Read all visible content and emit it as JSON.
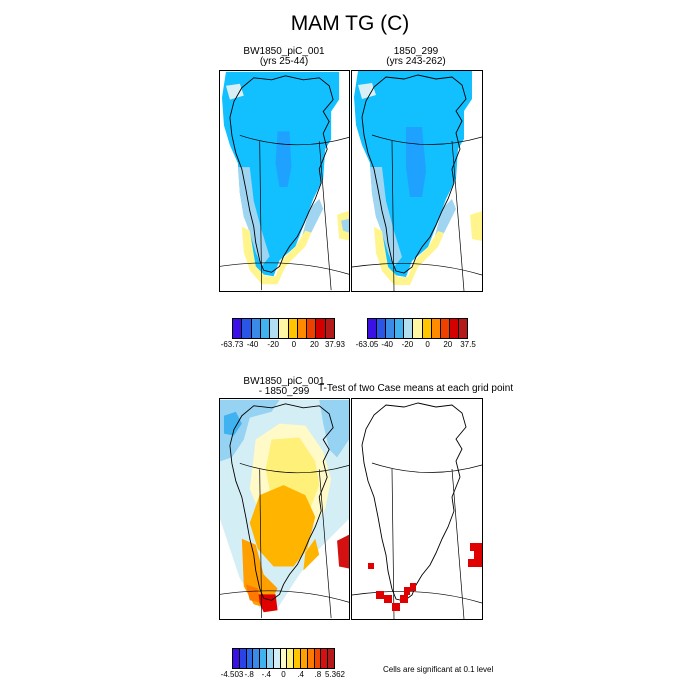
{
  "page": {
    "title": "MAM TG (C)"
  },
  "panels": [
    {
      "title_line1": "BW1850_piC_001",
      "title_line2": "(yrs 25-44)"
    },
    {
      "title_line1": "1850_299",
      "title_line2": "(yrs 243-262)"
    },
    {
      "title_line1": "BW1850_piC_001",
      "title_line2": "- 1850_299"
    },
    {
      "title_line1": "T-Test of two Case means at each grid point",
      "title_line2": ""
    }
  ],
  "colorbars": [
    {
      "colors": [
        "#3a10e6",
        "#2a55e6",
        "#3a8ae8",
        "#40b2f0",
        "#b2e0f2",
        "#fff7a4",
        "#ffc600",
        "#ff8a00",
        "#f04000",
        "#d40000",
        "#b41a1a"
      ],
      "labels": [
        "-63.73",
        "-40",
        "-20",
        "0",
        "20",
        "37.93"
      ]
    },
    {
      "colors": [
        "#3a10e6",
        "#2a55e6",
        "#3a8ae8",
        "#40b2f0",
        "#b2e0f2",
        "#fff7a4",
        "#ffc600",
        "#ff8a00",
        "#f04000",
        "#d40000",
        "#b41a1a"
      ],
      "labels": [
        "-63.05",
        "-40",
        "-20",
        "0",
        "20",
        "37.5"
      ]
    },
    {
      "colors": [
        "#3a10e6",
        "#2a42e6",
        "#2a6ae6",
        "#3a8ae8",
        "#40b2f0",
        "#96d2f2",
        "#d4eef6",
        "#fffac8",
        "#fff07a",
        "#ffc600",
        "#ffa000",
        "#ff7800",
        "#f04800",
        "#d41010",
        "#b41a1a"
      ],
      "labels": [
        "-4.503",
        "-.8",
        "-.4",
        "0",
        ".4",
        ".8",
        "5.362"
      ]
    }
  ],
  "significance_note": "Cells are significant at 0.1 level",
  "colors": {
    "cold_top": "#12bfff",
    "cold_mid": "#1fa1ff",
    "cool": "#9fd5f0",
    "pale": "#d8f0f5",
    "warm_edge": "#fff58c",
    "sig": "#e00000",
    "diff_warm": "#ffb400",
    "diff_orange": "#ffa000"
  }
}
